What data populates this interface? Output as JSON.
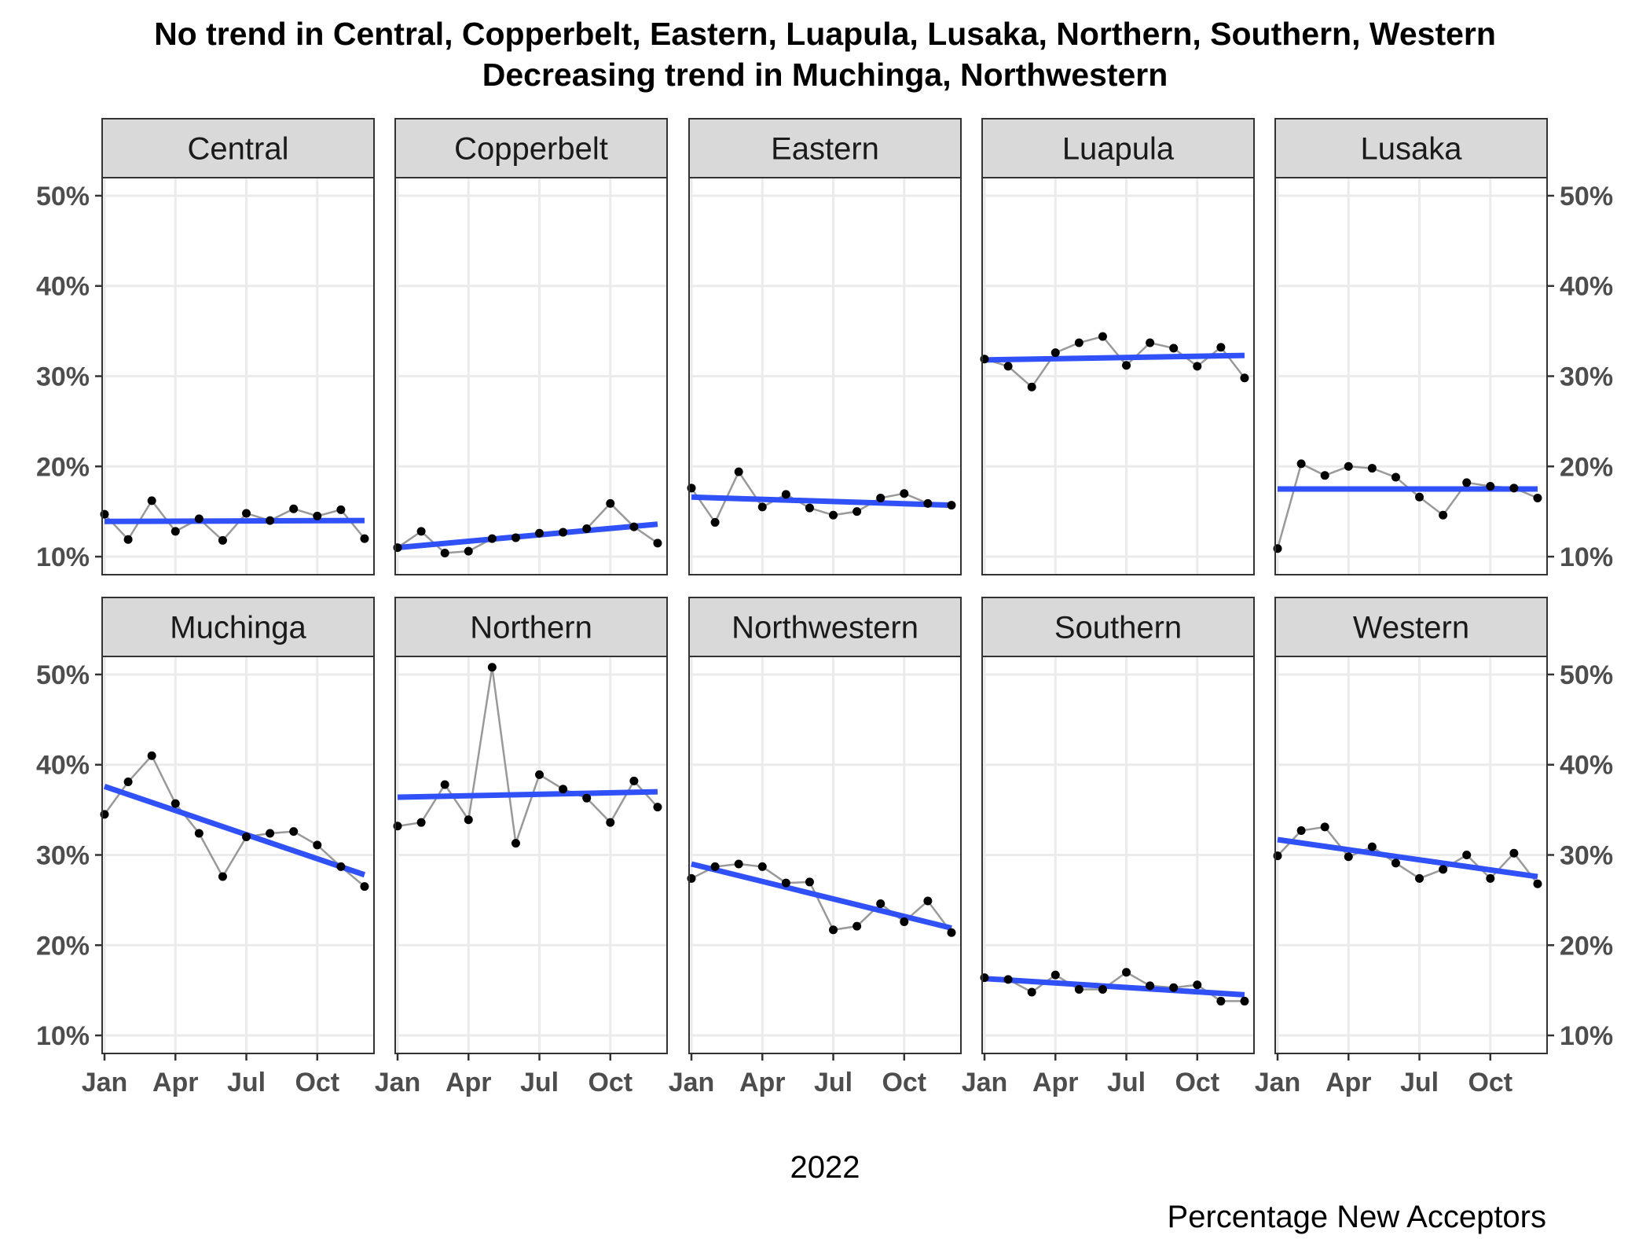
{
  "chart_data": {
    "type": "line",
    "title_lines": [
      "No trend in Central, Copperbelt, Eastern, Luapula, Lusaka, Northern, Southern, Western",
      "Decreasing trend in Muchinga, Northwestern"
    ],
    "xlabel": "2022",
    "caption": "Percentage New Acceptors",
    "x_ticks": [
      "Jan",
      "Apr",
      "Jul",
      "Oct"
    ],
    "x_tick_months": [
      1,
      4,
      7,
      10
    ],
    "x_range": [
      0.9,
      12.4
    ],
    "y_ticks": [
      "10%",
      "20%",
      "30%",
      "40%",
      "50%"
    ],
    "y_tick_values": [
      10,
      20,
      30,
      40,
      50
    ],
    "y_range": [
      8,
      52
    ],
    "grid": true,
    "facet_layout": "2 rows x 5 columns",
    "colors": {
      "raw_line": "#999999",
      "points": "#000000",
      "trend": "#3050f8",
      "strip_bg": "#d9d9d9",
      "grid": "#ebebeb"
    },
    "months": [
      1,
      2,
      3,
      4,
      5,
      6,
      7,
      8,
      9,
      10,
      11,
      12
    ],
    "facets": [
      {
        "name": "Central",
        "values": [
          14.7,
          11.9,
          16.2,
          12.8,
          14.2,
          11.8,
          14.8,
          14.0,
          15.3,
          14.5,
          15.2,
          12.0
        ],
        "trend": [
          13.9,
          14.0
        ]
      },
      {
        "name": "Copperbelt",
        "values": [
          11.0,
          12.8,
          10.4,
          10.6,
          12.0,
          12.1,
          12.6,
          12.7,
          13.1,
          15.9,
          13.3,
          11.5
        ],
        "trend": [
          11.0,
          13.6
        ]
      },
      {
        "name": "Eastern",
        "values": [
          17.6,
          13.8,
          19.4,
          15.5,
          16.9,
          15.4,
          14.6,
          15.0,
          16.5,
          17.0,
          15.9,
          15.7
        ],
        "trend": [
          16.6,
          15.7
        ]
      },
      {
        "name": "Luapula",
        "values": [
          31.9,
          31.1,
          28.8,
          32.6,
          33.7,
          34.4,
          31.2,
          33.7,
          33.1,
          31.1,
          33.2,
          29.8
        ],
        "trend": [
          31.8,
          32.3
        ]
      },
      {
        "name": "Lusaka",
        "values": [
          10.9,
          20.3,
          19.0,
          20.0,
          19.8,
          18.8,
          16.6,
          14.6,
          18.2,
          17.8,
          17.6,
          16.5
        ],
        "trend": [
          17.5,
          17.5
        ]
      },
      {
        "name": "Muchinga",
        "values": [
          34.5,
          38.1,
          41.0,
          35.7,
          32.4,
          27.6,
          32.0,
          32.4,
          32.6,
          31.1,
          28.7,
          26.5
        ],
        "trend": [
          37.6,
          27.8
        ]
      },
      {
        "name": "Northern",
        "values": [
          33.2,
          33.6,
          37.8,
          33.9,
          50.8,
          31.3,
          38.9,
          37.3,
          36.3,
          33.6,
          38.2,
          35.3
        ],
        "trend": [
          36.4,
          37.0
        ]
      },
      {
        "name": "Northwestern",
        "values": [
          27.4,
          28.7,
          29.0,
          28.7,
          26.9,
          27.0,
          21.7,
          22.1,
          24.6,
          22.6,
          24.9,
          21.4
        ],
        "trend": [
          29.0,
          21.9
        ]
      },
      {
        "name": "Southern",
        "values": [
          16.4,
          16.2,
          14.8,
          16.7,
          15.1,
          15.1,
          17.0,
          15.5,
          15.3,
          15.6,
          13.8,
          13.8
        ],
        "trend": [
          16.3,
          14.5
        ]
      },
      {
        "name": "Western",
        "values": [
          29.9,
          32.7,
          33.1,
          29.8,
          30.9,
          29.1,
          27.4,
          28.4,
          30.0,
          27.4,
          30.2,
          26.8
        ],
        "trend": [
          31.7,
          27.6
        ]
      }
    ]
  }
}
